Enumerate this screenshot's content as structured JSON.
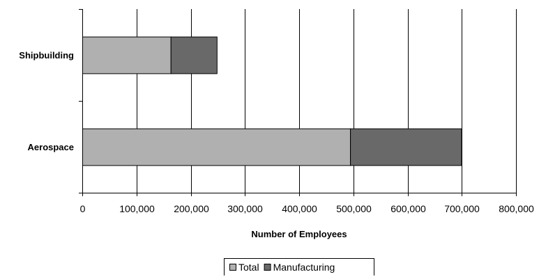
{
  "chart_data": {
    "type": "bar",
    "orientation": "horizontal",
    "stacked": true,
    "categories": [
      "Shipbuilding",
      "Aerospace"
    ],
    "series": [
      {
        "name": "Total",
        "values": [
          163000,
          494000
        ],
        "color": "#b0b0b0"
      },
      {
        "name": "Manufacturing",
        "values": [
          85000,
          205000
        ],
        "color": "#696969"
      }
    ],
    "xlabel": "Number of Employees",
    "ylabel": "",
    "xlim": [
      0,
      800000
    ],
    "xticks": [
      0,
      100000,
      200000,
      300000,
      400000,
      500000,
      600000,
      700000,
      800000
    ],
    "xtick_labels": [
      "0",
      "100,000",
      "200,000",
      "300,000",
      "400,000",
      "500,000",
      "600,000",
      "700,000",
      "800,000"
    ],
    "grid": "vertical",
    "legend_position": "bottom-center"
  }
}
